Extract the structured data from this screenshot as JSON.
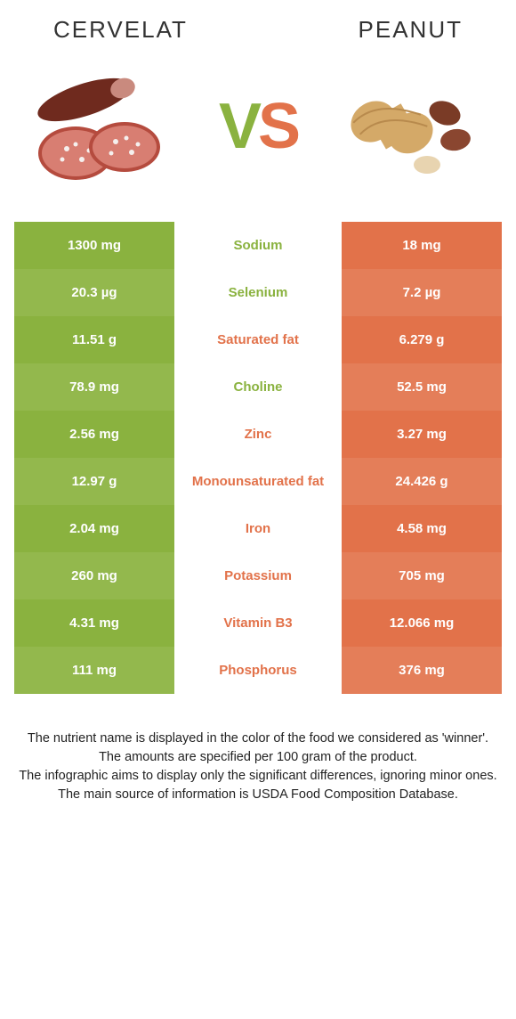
{
  "header": {
    "left_title": "Cervelat",
    "right_title": "Peanut"
  },
  "vs": {
    "v": "V",
    "s": "S"
  },
  "colors": {
    "green": "#8ab23f",
    "orange": "#e2724a",
    "green_alt": "#93b84d",
    "orange_alt": "#e47e59"
  },
  "rows": [
    {
      "left": "1300 mg",
      "name": "Sodium",
      "right": "18 mg",
      "winner": "left"
    },
    {
      "left": "20.3 µg",
      "name": "Selenium",
      "right": "7.2 µg",
      "winner": "left"
    },
    {
      "left": "11.51 g",
      "name": "Saturated fat",
      "right": "6.279 g",
      "winner": "right"
    },
    {
      "left": "78.9 mg",
      "name": "Choline",
      "right": "52.5 mg",
      "winner": "left"
    },
    {
      "left": "2.56 mg",
      "name": "Zinc",
      "right": "3.27 mg",
      "winner": "right"
    },
    {
      "left": "12.97 g",
      "name": "Monounsaturated fat",
      "right": "24.426 g",
      "winner": "right"
    },
    {
      "left": "2.04 mg",
      "name": "Iron",
      "right": "4.58 mg",
      "winner": "right"
    },
    {
      "left": "260 mg",
      "name": "Potassium",
      "right": "705 mg",
      "winner": "right"
    },
    {
      "left": "4.31 mg",
      "name": "Vitamin B3",
      "right": "12.066 mg",
      "winner": "right"
    },
    {
      "left": "111 mg",
      "name": "Phosphorus",
      "right": "376 mg",
      "winner": "right"
    }
  ],
  "footnotes": [
    "The nutrient name is displayed in the color of the food we considered as 'winner'.",
    "The amounts are specified per 100 gram of the product.",
    "The infographic aims to display only the significant differences, ignoring minor ones.",
    "The main source of information is USDA Food Composition Database."
  ]
}
